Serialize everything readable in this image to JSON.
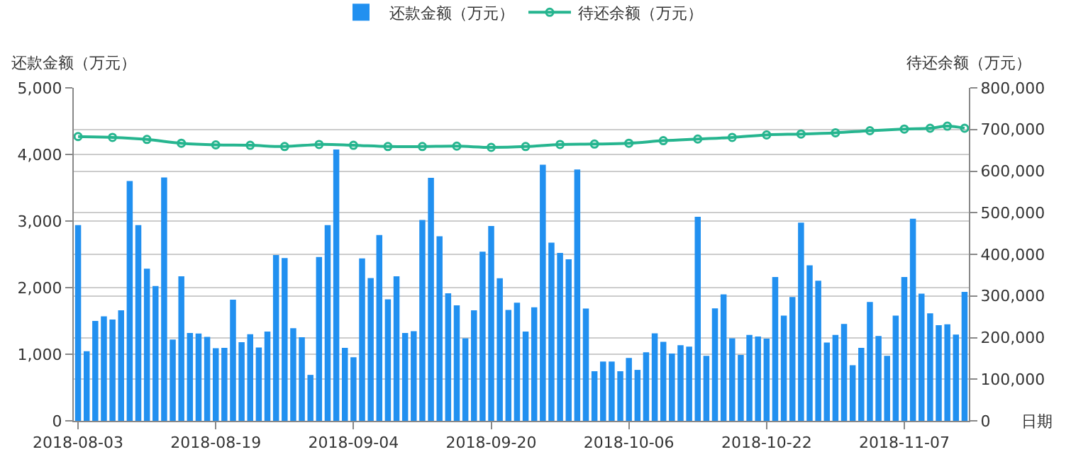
{
  "chart_data": {
    "type": "bar",
    "ylabel": "还款金额（万元）",
    "y2label": "待还余额（万元）",
    "xlabel": "日期",
    "x": [
      "2018-08-03",
      "2018-08-04",
      "2018-08-05",
      "2018-08-06",
      "2018-08-07",
      "2018-08-08",
      "2018-08-09",
      "2018-08-10",
      "2018-08-11",
      "2018-08-12",
      "2018-08-13",
      "2018-08-14",
      "2018-08-15",
      "2018-08-16",
      "2018-08-17",
      "2018-08-18",
      "2018-08-19",
      "2018-08-20",
      "2018-08-21",
      "2018-08-22",
      "2018-08-23",
      "2018-08-24",
      "2018-08-25",
      "2018-08-26",
      "2018-08-27",
      "2018-08-28",
      "2018-08-29",
      "2018-08-30",
      "2018-08-31",
      "2018-09-01",
      "2018-09-02",
      "2018-09-03",
      "2018-09-04",
      "2018-09-05",
      "2018-09-06",
      "2018-09-07",
      "2018-09-08",
      "2018-09-09",
      "2018-09-10",
      "2018-09-11",
      "2018-09-12",
      "2018-09-13",
      "2018-09-14",
      "2018-09-15",
      "2018-09-16",
      "2018-09-17",
      "2018-09-18",
      "2018-09-19",
      "2018-09-20",
      "2018-09-21",
      "2018-09-22",
      "2018-09-23",
      "2018-09-24",
      "2018-09-25",
      "2018-09-26",
      "2018-09-27",
      "2018-09-28",
      "2018-09-29",
      "2018-09-30",
      "2018-10-01",
      "2018-10-02",
      "2018-10-03",
      "2018-10-04",
      "2018-10-05",
      "2018-10-06",
      "2018-10-07",
      "2018-10-08",
      "2018-10-09",
      "2018-10-10",
      "2018-10-11",
      "2018-10-12",
      "2018-10-13",
      "2018-10-14",
      "2018-10-15",
      "2018-10-16",
      "2018-10-17",
      "2018-10-18",
      "2018-10-19",
      "2018-10-20",
      "2018-10-21",
      "2018-10-22",
      "2018-10-23",
      "2018-10-24",
      "2018-10-25",
      "2018-10-26",
      "2018-10-27",
      "2018-10-28",
      "2018-10-29",
      "2018-10-30",
      "2018-10-31",
      "2018-11-01",
      "2018-11-02",
      "2018-11-03",
      "2018-11-04",
      "2018-11-05",
      "2018-11-06",
      "2018-11-07",
      "2018-11-08",
      "2018-11-09",
      "2018-11-10",
      "2018-11-11",
      "2018-11-12",
      "2018-11-13",
      "2018-11-14"
    ],
    "series": [
      {
        "name": "还款金额（万元）",
        "color": "#2190f0",
        "values": [
          2940,
          1045,
          1500,
          1570,
          1520,
          1660,
          3600,
          2940,
          2285,
          2025,
          3655,
          1220,
          2170,
          1320,
          1310,
          1260,
          1090,
          1095,
          1820,
          1180,
          1300,
          1100,
          1340,
          2490,
          2445,
          1390,
          1255,
          690,
          2460,
          2940,
          4075,
          1095,
          955,
          2440,
          2145,
          2790,
          1825,
          2170,
          1320,
          1345,
          3015,
          3650,
          2770,
          1915,
          1735,
          1240,
          1660,
          2540,
          2925,
          2140,
          1665,
          1775,
          1340,
          1705,
          3845,
          2675,
          2520,
          2425,
          3775,
          1685,
          745,
          890,
          890,
          745,
          945,
          765,
          1030,
          1315,
          1185,
          1010,
          1135,
          1115,
          3065,
          975,
          1690,
          1900,
          1240,
          990,
          1290,
          1265,
          1235,
          2160,
          1580,
          1860,
          2975,
          2335,
          2105,
          1175,
          1290,
          1455,
          835,
          1095,
          1785,
          1275,
          975,
          1580,
          2160,
          3035,
          1910,
          1615,
          1435,
          1450,
          1295,
          1935
        ]
      },
      {
        "name": "待还余额（万元）",
        "type": "line",
        "axis": "y2",
        "color": "#26b58f",
        "marker": "circle",
        "x": [
          "2018-08-03",
          "2018-08-07",
          "2018-08-11",
          "2018-08-15",
          "2018-08-19",
          "2018-08-23",
          "2018-08-27",
          "2018-08-31",
          "2018-09-04",
          "2018-09-08",
          "2018-09-12",
          "2018-09-16",
          "2018-09-20",
          "2018-09-24",
          "2018-09-28",
          "2018-10-02",
          "2018-10-06",
          "2018-10-10",
          "2018-10-14",
          "2018-10-18",
          "2018-10-22",
          "2018-10-26",
          "2018-10-30",
          "2018-11-03",
          "2018-11-07",
          "2018-11-10",
          "2018-11-12",
          "2018-11-14"
        ],
        "values": [
          683000,
          681000,
          676000,
          667000,
          663000,
          662000,
          659000,
          664000,
          662000,
          659000,
          659000,
          660000,
          657000,
          659000,
          664000,
          665000,
          667000,
          673000,
          677000,
          681000,
          687000,
          689000,
          692000,
          697000,
          701000,
          703000,
          708000,
          703000
        ]
      }
    ],
    "xlim": [
      "2018-08-02T12:00",
      "2018-11-14T12:00"
    ],
    "xticks": [
      "2018-08-03",
      "2018-08-19",
      "2018-09-04",
      "2018-09-20",
      "2018-10-06",
      "2018-10-22",
      "2018-11-07"
    ],
    "ylim": [
      0,
      5000
    ],
    "yticks": [
      0,
      {
        "value": 1000,
        "label": "1,000"
      },
      {
        "value": 2000,
        "label": "2,000"
      },
      {
        "value": 3000,
        "label": "3,000"
      },
      {
        "value": 4000,
        "label": "4,000"
      },
      {
        "value": 5000,
        "label": "5,000"
      }
    ],
    "y2lim": [
      0,
      800000
    ],
    "y2ticks": [
      0,
      {
        "value": 100000,
        "label": "100,000"
      },
      {
        "value": 200000,
        "label": "200,000"
      },
      {
        "value": 300000,
        "label": "300,000"
      },
      {
        "value": 400000,
        "label": "400,000"
      },
      {
        "value": 500000,
        "label": "500,000"
      },
      {
        "value": 600000,
        "label": "600,000"
      },
      {
        "value": 700000,
        "label": "700,000"
      },
      {
        "value": 800000,
        "label": "800,000"
      }
    ],
    "grid": true,
    "legend": "top"
  }
}
